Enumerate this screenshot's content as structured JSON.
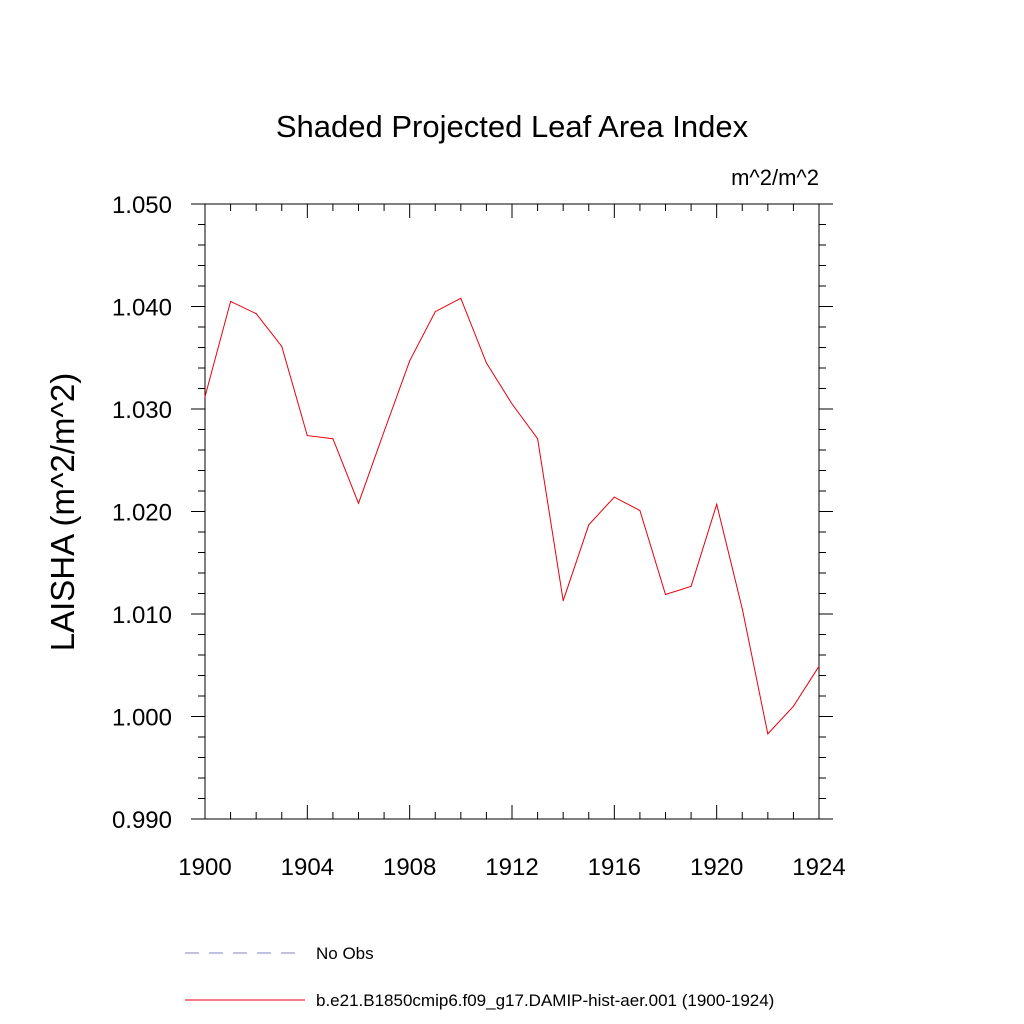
{
  "chart_data": {
    "type": "line",
    "title": "Shaded Projected Leaf Area Index",
    "units_label": "m^2/m^2",
    "ylabel": "LAISHA  (m^2/m^2)",
    "xlabel": "",
    "xlim": [
      1900,
      1924
    ],
    "ylim": [
      0.99,
      1.05
    ],
    "x_ticks": [
      1900,
      1904,
      1908,
      1912,
      1916,
      1920,
      1924
    ],
    "x_tick_labels": [
      "1900",
      "1904",
      "1908",
      "1912",
      "1916",
      "1920",
      "1924"
    ],
    "y_ticks": [
      0.99,
      1.0,
      1.01,
      1.02,
      1.03,
      1.04,
      1.05
    ],
    "y_tick_labels": [
      "0.990",
      "1.000",
      "1.010",
      "1.020",
      "1.030",
      "1.040",
      "1.050"
    ],
    "grid": false,
    "legend_position": "bottom",
    "series": [
      {
        "name": "No Obs",
        "color": "#8080c0",
        "dash": "dashed",
        "x": [],
        "values": []
      },
      {
        "name": "b.e21.B1850cmip6.f09_g17.DAMIP-hist-aer.001 (1900-1924)",
        "color": "#e8000b",
        "dash": "solid",
        "x": [
          1900,
          1901,
          1902,
          1903,
          1904,
          1905,
          1906,
          1907,
          1908,
          1909,
          1910,
          1911,
          1912,
          1913,
          1914,
          1915,
          1916,
          1917,
          1918,
          1919,
          1920,
          1921,
          1922,
          1923,
          1924
        ],
        "values": [
          1.0312,
          1.0405,
          1.0393,
          1.0361,
          1.0274,
          1.0271,
          1.0208,
          1.0278,
          1.0347,
          1.0395,
          1.0408,
          1.0345,
          1.0305,
          1.0271,
          1.0113,
          1.0187,
          1.0214,
          1.0201,
          1.0119,
          1.0127,
          1.0207,
          1.0105,
          0.9983,
          1.001,
          1.0049
        ]
      }
    ]
  }
}
